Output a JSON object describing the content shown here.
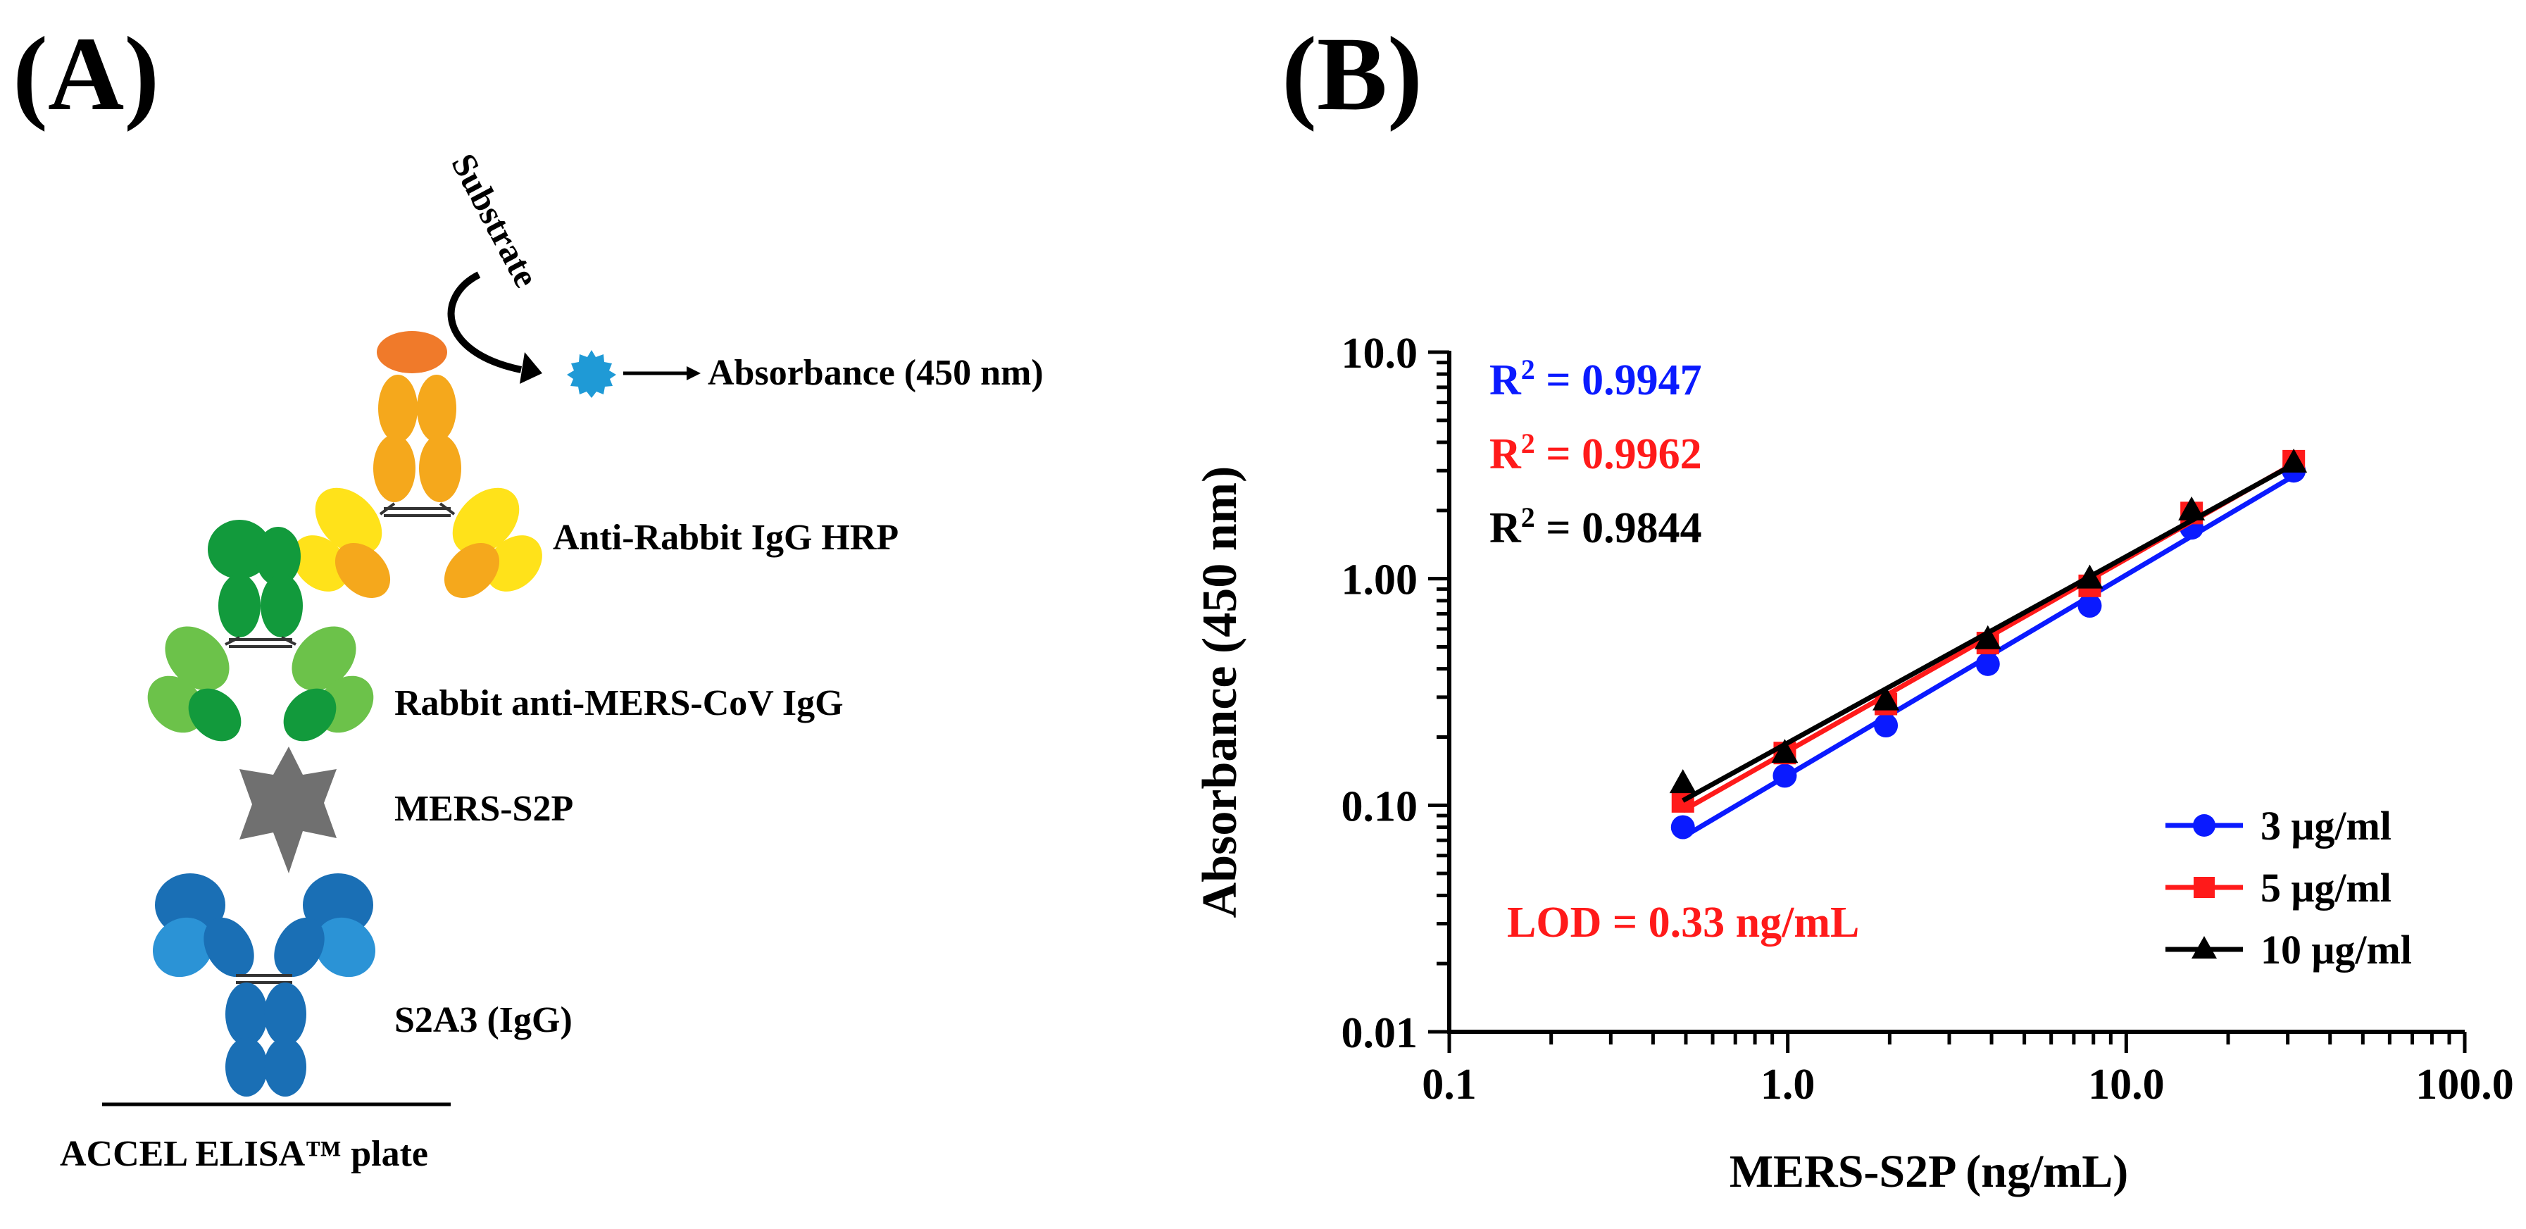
{
  "panel_a": {
    "label": "(A)",
    "substrate": "Substrate",
    "absorbance": "Absorbance (450 nm)",
    "anti_rabbit": "Anti-Rabbit IgG HRP",
    "rabbit_anti": "Rabbit anti-MERS-CoV IgG",
    "mers_s2p": "MERS-S2P",
    "s2a3": "S2A3 (IgG)",
    "plate": "ACCEL ELISA™ plate",
    "colors": {
      "hrp": "#f07a2a",
      "product": "#1f9ad6",
      "yellow_ab": "#f5a81c",
      "green_ab": "#129a3c",
      "antigen": "#707070",
      "blue_ab": "#1a6fb5"
    }
  },
  "panel_b": {
    "label": "(B)"
  },
  "chart_data": {
    "type": "line",
    "xscale": "log",
    "yscale": "log",
    "xlabel": "MERS-S2P (ng/mL)",
    "ylabel": "Absorbance (450 nm)",
    "xlim": [
      0.1,
      100
    ],
    "ylim": [
      0.01,
      10
    ],
    "xticks": [
      "0.1",
      "1.0",
      "10.0",
      "100.0"
    ],
    "yticks": [
      "0.01",
      "0.10",
      "1.00",
      "10.0"
    ],
    "x": [
      0.49,
      0.98,
      1.95,
      3.9,
      7.8,
      15.6,
      31.25
    ],
    "series": [
      {
        "name": "3 μg/ml",
        "color": "#0a1aff",
        "marker": "circle",
        "values": [
          0.08,
          0.135,
          0.225,
          0.42,
          0.76,
          1.68,
          3.0
        ],
        "r2_label": "R",
        "r2_value": " = 0.9947"
      },
      {
        "name": "5 μg/ml",
        "color": "#ff1a1a",
        "marker": "square",
        "values": [
          0.104,
          0.17,
          0.28,
          0.52,
          0.93,
          1.95,
          3.3
        ],
        "r2_label": "R",
        "r2_value": " = 0.9962"
      },
      {
        "name": "10 μg/ml",
        "color": "#000000",
        "marker": "triangle",
        "values": [
          0.125,
          0.17,
          0.29,
          0.54,
          1.0,
          2.0,
          3.25
        ],
        "r2_label": "R",
        "r2_value": " = 0.9844"
      }
    ],
    "lod_text": "LOD = 0.33 ng/mL",
    "lod_color": "#ff1a1a",
    "legend_position": "bottom-right"
  }
}
